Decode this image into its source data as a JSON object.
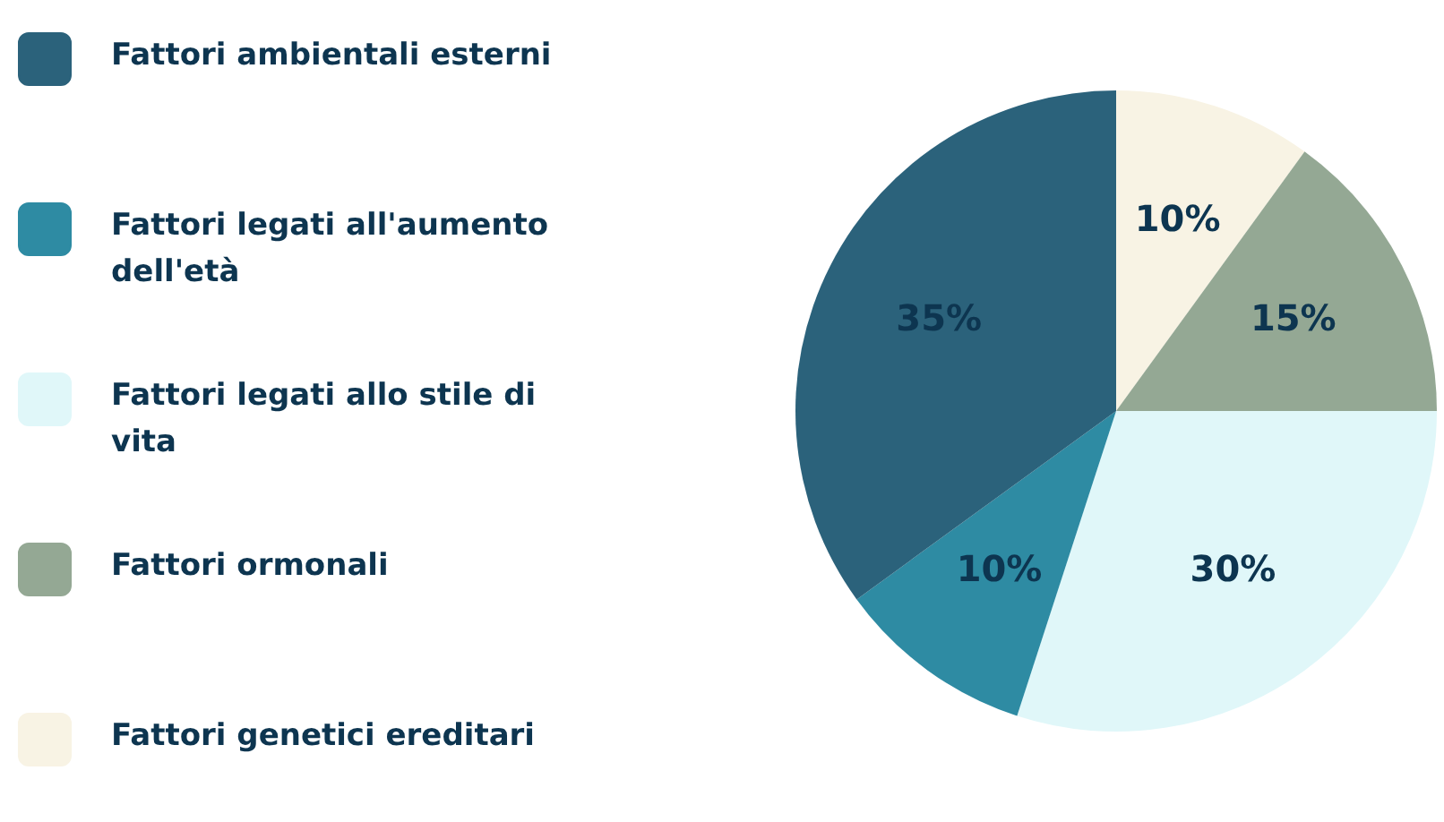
{
  "chart_data": {
    "type": "pie",
    "categories": [
      "Fattori ambientali esterni",
      "Fattori legati all'aumento dell'età",
      "Fattori legati allo stile di vita",
      "Fattori ormonali",
      "Fattori genetici ereditari"
    ],
    "values": [
      35,
      10,
      30,
      15,
      10
    ],
    "value_labels": [
      "35%",
      "10%",
      "30%",
      "15%",
      "10%"
    ],
    "colors": [
      "#2b627b",
      "#2e8ba3",
      "#e0f7f9",
      "#94a894",
      "#f8f3e4"
    ],
    "legend": "left"
  }
}
